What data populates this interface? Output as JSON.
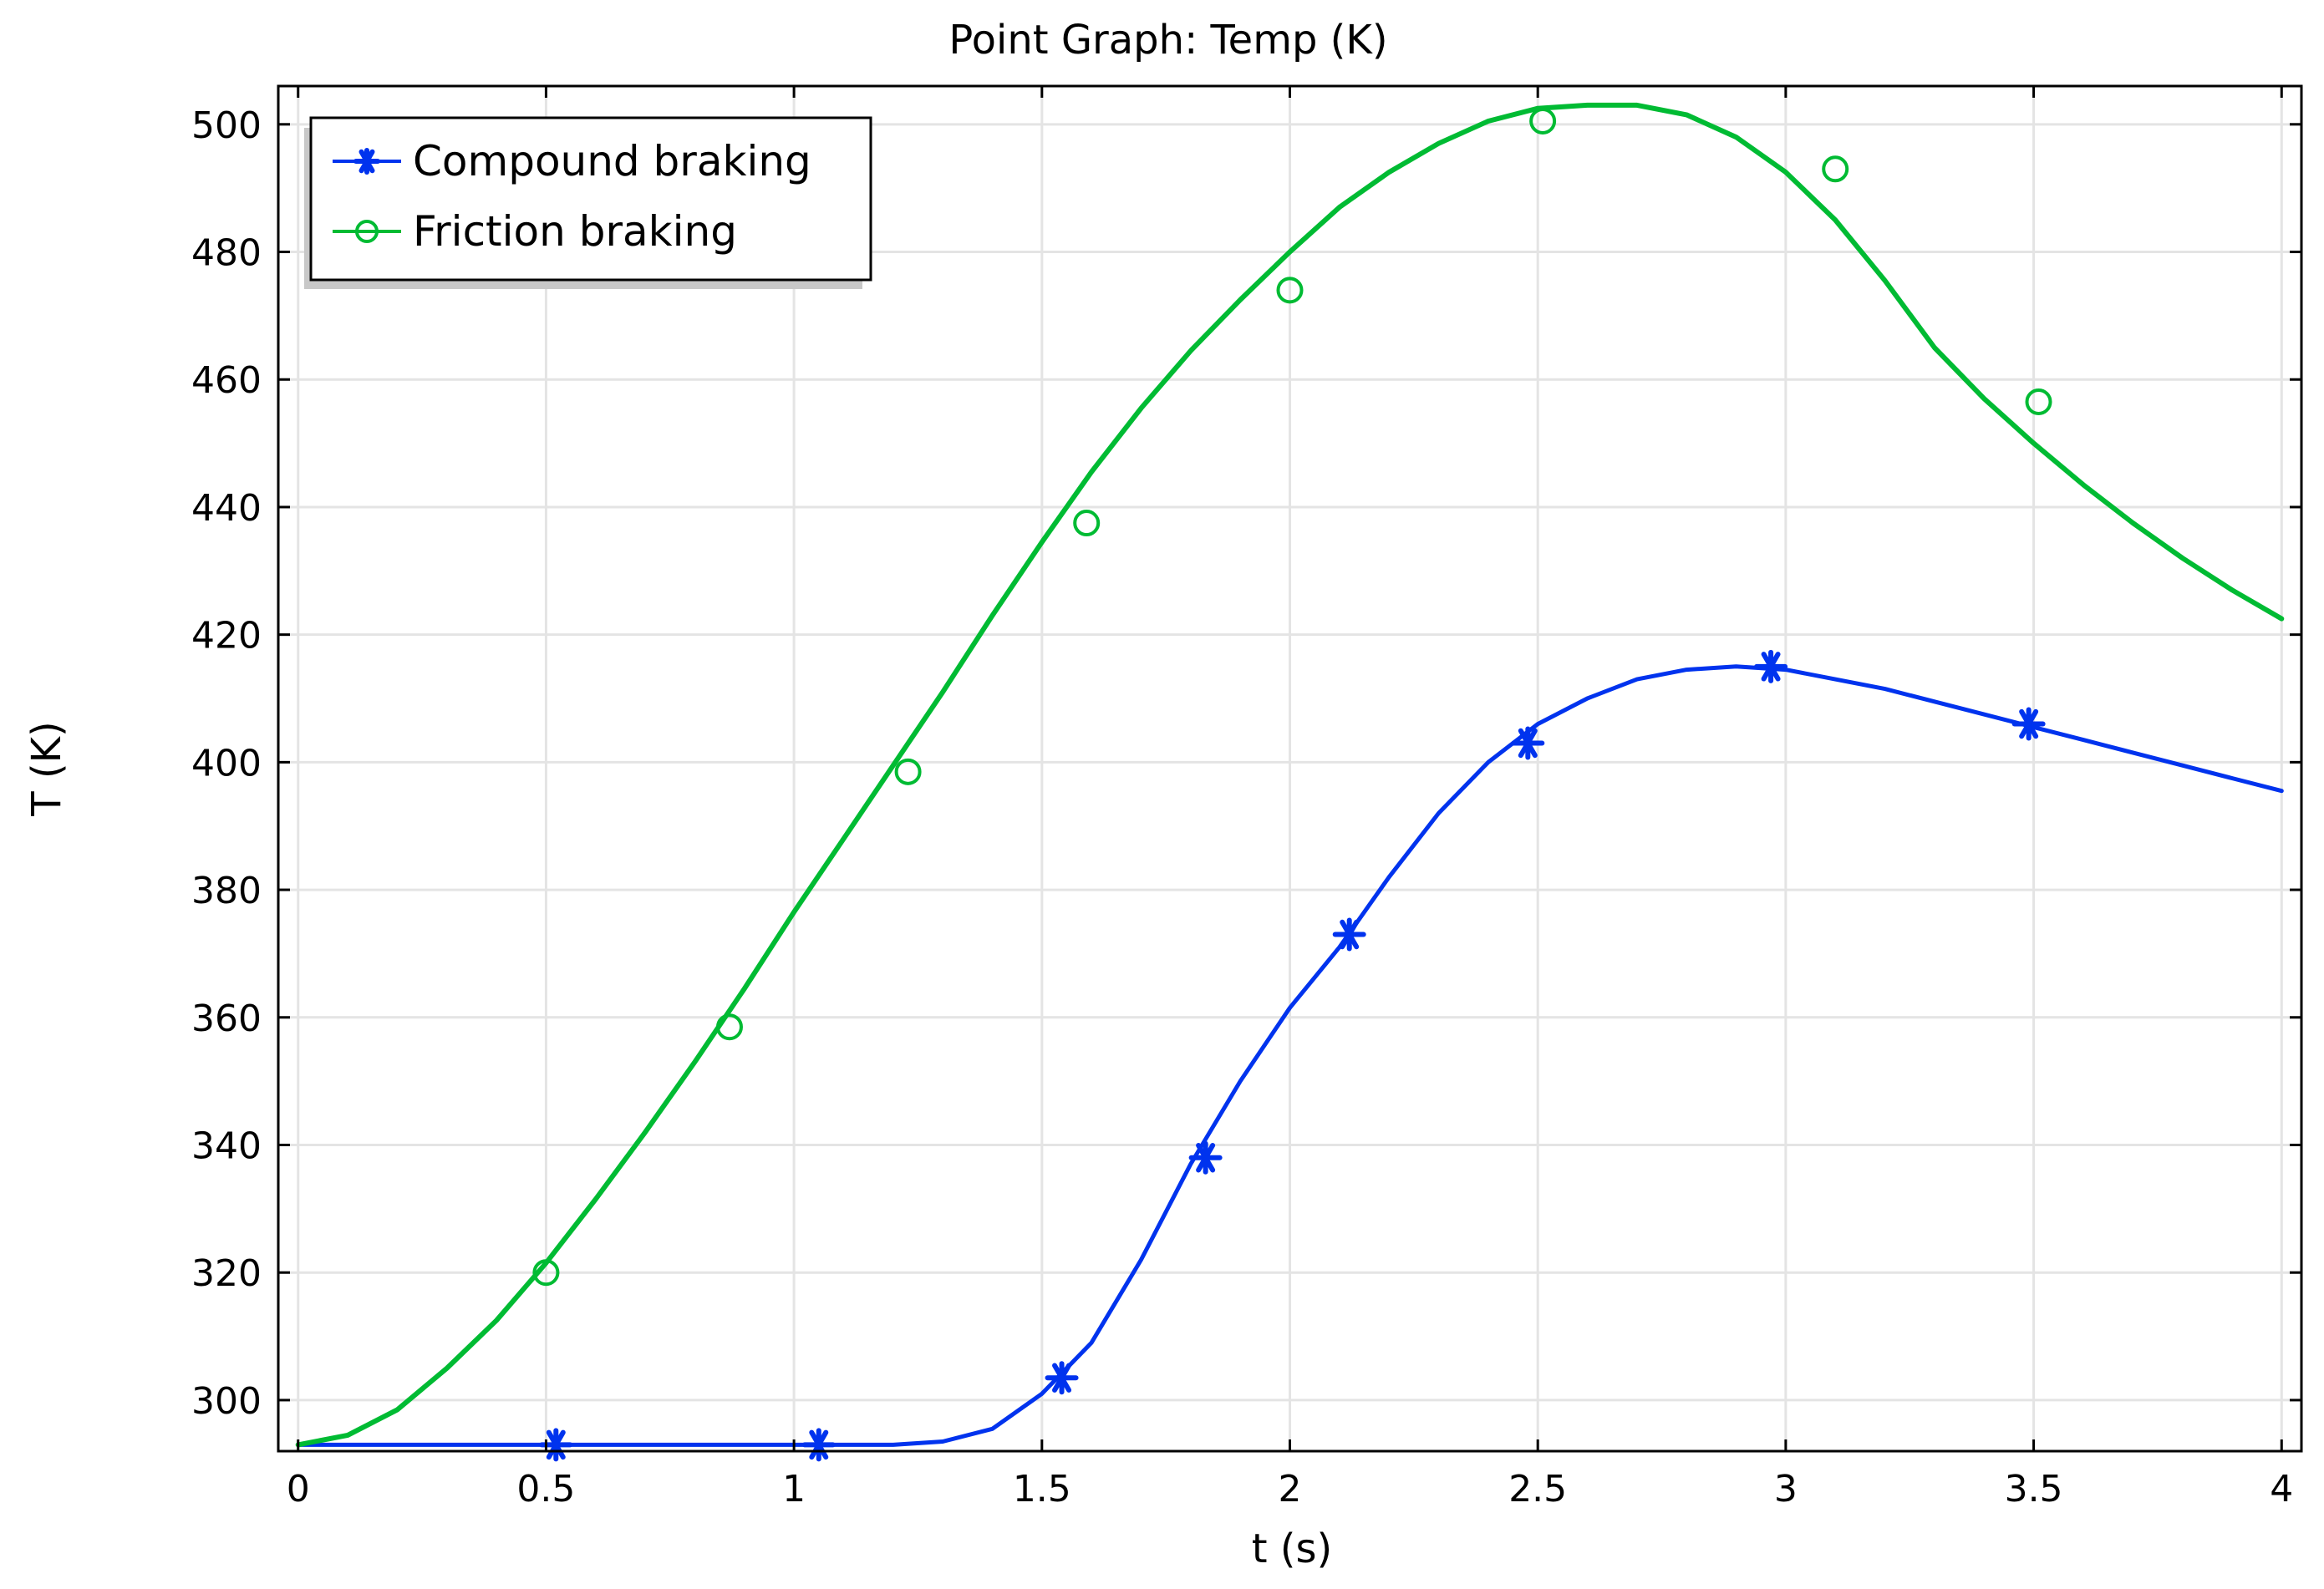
{
  "chart_data": {
    "type": "line",
    "title": "Point Graph: Temp (K)",
    "xlabel": "t (s)",
    "ylabel": "T (K)",
    "xlim": [
      -0.04,
      4.04
    ],
    "ylim": [
      292,
      506
    ],
    "xticks": [
      0,
      0.5,
      1,
      1.5,
      2,
      2.5,
      3,
      3.5,
      4
    ],
    "xtick_labels": [
      "0",
      "0.5",
      "1",
      "1.5",
      "2",
      "2.5",
      "3",
      "3.5",
      "4"
    ],
    "yticks": [
      300,
      320,
      340,
      360,
      380,
      400,
      420,
      440,
      460,
      480,
      500
    ],
    "ytick_labels": [
      "300",
      "320",
      "340",
      "360",
      "380",
      "400",
      "420",
      "440",
      "460",
      "480",
      "500"
    ],
    "grid": true,
    "legend_position": "top-left",
    "series": [
      {
        "name": "Compound braking",
        "color": "#0033ee",
        "marker": "asterisk",
        "x": [
          0,
          0.1,
          0.2,
          0.3,
          0.4,
          0.5,
          0.6,
          0.7,
          0.8,
          0.9,
          1.0,
          1.1,
          1.2,
          1.3,
          1.4,
          1.5,
          1.6,
          1.7,
          1.8,
          1.9,
          2.0,
          2.1,
          2.2,
          2.3,
          2.4,
          2.5,
          2.6,
          2.7,
          2.8,
          2.9,
          3.0,
          3.1,
          3.2,
          3.3,
          3.4,
          3.5,
          3.6,
          3.7,
          3.8,
          3.9,
          4.0
        ],
        "y": [
          293,
          293,
          293,
          293,
          293,
          293,
          293,
          293,
          293,
          293,
          293,
          293,
          293,
          293.5,
          295.5,
          301,
          309,
          322,
          337,
          350,
          361.5,
          371,
          382,
          392,
          400,
          406,
          410,
          413,
          414.5,
          415,
          414.5,
          413,
          411.5,
          409.5,
          407.5,
          405.5,
          403.5,
          401.5,
          399.5,
          397.5,
          395.5
        ],
        "marker_x": [
          0.52,
          1.05,
          1.54,
          1.83,
          2.12,
          2.48,
          2.97,
          3.49
        ],
        "marker_y": [
          293,
          293,
          303.5,
          338,
          373,
          403,
          415,
          406
        ]
      },
      {
        "name": "Friction braking",
        "color": "#00bb33",
        "marker": "circle",
        "x": [
          0,
          0.1,
          0.2,
          0.3,
          0.4,
          0.5,
          0.6,
          0.7,
          0.8,
          0.9,
          1.0,
          1.1,
          1.2,
          1.3,
          1.4,
          1.5,
          1.6,
          1.7,
          1.8,
          1.9,
          2.0,
          2.1,
          2.2,
          2.3,
          2.4,
          2.5,
          2.6,
          2.7,
          2.8,
          2.9,
          3.0,
          3.1,
          3.2,
          3.3,
          3.4,
          3.5,
          3.6,
          3.7,
          3.8,
          3.9,
          4.0
        ],
        "y": [
          293,
          294.5,
          298.5,
          305,
          312.5,
          321.5,
          331.5,
          342,
          353,
          364.5,
          376.5,
          388,
          399.5,
          411,
          423,
          434.5,
          445.5,
          455.5,
          464.5,
          472.5,
          480,
          487,
          492.5,
          497,
          500.5,
          502.5,
          503,
          503,
          501.5,
          498,
          492.5,
          485,
          475.5,
          465,
          457,
          450,
          443.5,
          437.5,
          432,
          427,
          422.5
        ],
        "marker_x": [
          0.5,
          0.87,
          1.23,
          1.59,
          2.0,
          2.51,
          3.1,
          3.51
        ],
        "marker_y": [
          320,
          358.5,
          398.5,
          437.5,
          474,
          500.5,
          493,
          456.5
        ]
      }
    ]
  }
}
